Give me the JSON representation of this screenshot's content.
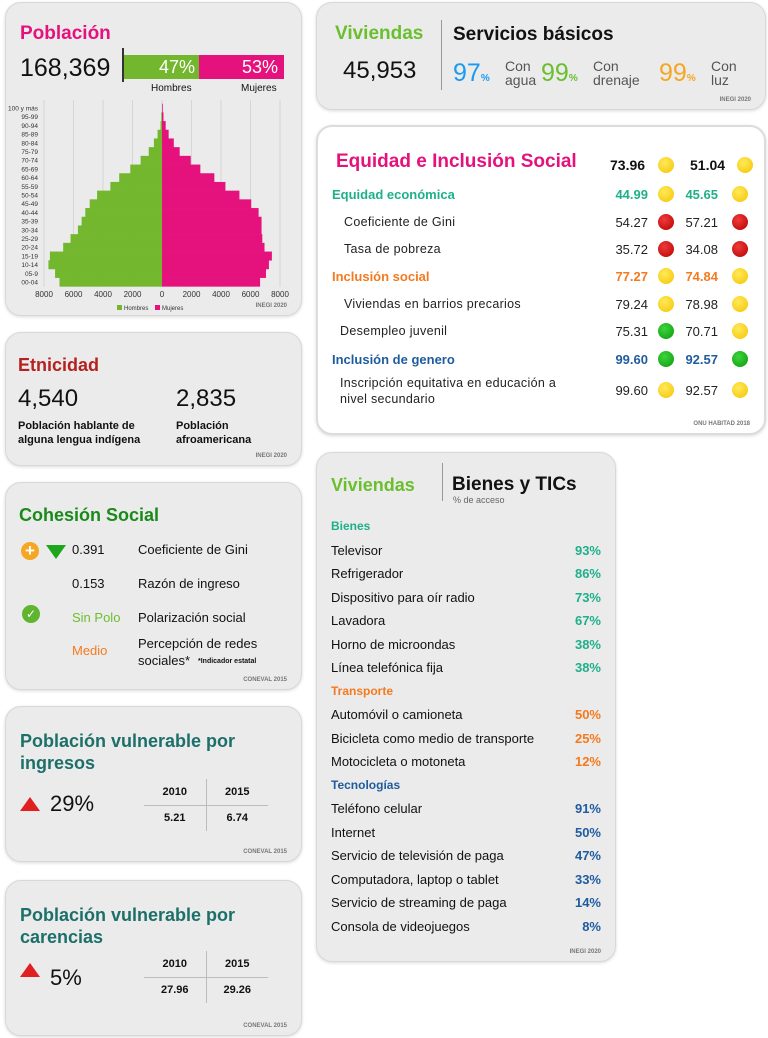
{
  "poblacion": {
    "title": "Población",
    "total": "168,369",
    "hombres_pct": "47%",
    "mujeres_pct": "53%",
    "hombres_label": "Hombres",
    "mujeres_label": "Mujeres",
    "source": "INEGI 2020"
  },
  "chart_data": {
    "type": "bar",
    "orientation": "horizontal-pyramid",
    "xlabel": "",
    "ylabel": "",
    "xlim": [
      -8000,
      8000
    ],
    "x_ticks": [
      "8000",
      "6000",
      "4000",
      "2000",
      "0",
      "2000",
      "4000",
      "6000",
      "8000"
    ],
    "categories": [
      "100 y más",
      "95-99",
      "90-94",
      "85-89",
      "80-84",
      "75-79",
      "70-74",
      "65-69",
      "60-64",
      "55-59",
      "50-54",
      "45-49",
      "40-44",
      "35-39",
      "30-34",
      "25-29",
      "20-24",
      "15-19",
      "10-14",
      "05-9",
      "00-04"
    ],
    "series": [
      {
        "name": "Hombres",
        "color": "#72b72e",
        "values": [
          0,
          50,
          100,
          300,
          550,
          900,
          1450,
          2150,
          2900,
          3500,
          4400,
          4900,
          5200,
          5450,
          5700,
          6200,
          6700,
          7600,
          7700,
          7250,
          6950
        ]
      },
      {
        "name": "Mujeres",
        "color": "#e5127d",
        "values": [
          50,
          100,
          250,
          450,
          800,
          1200,
          1950,
          2600,
          3550,
          4300,
          5250,
          6050,
          6550,
          6750,
          6750,
          6800,
          6950,
          7450,
          7250,
          7050,
          6650
        ]
      }
    ],
    "legend": "bottom-center"
  },
  "viviendas": {
    "title": "Viviendas",
    "total": "45,953",
    "servicios_title": "Servicios básicos",
    "items": [
      {
        "value": "97",
        "pct": "%",
        "label1": "Con",
        "label2": "agua",
        "color": "#1a9bf0"
      },
      {
        "value": "99",
        "pct": "%",
        "label1": "Con",
        "label2": "drenaje",
        "color": "#6abf2e"
      },
      {
        "value": "99",
        "pct": "%",
        "label1": "Con",
        "label2": "luz",
        "color": "#f5a623"
      }
    ],
    "source": "INEGI 2020"
  },
  "equidad": {
    "title": "Equidad e Inclusión Social",
    "v1": "73.96",
    "v2": "51.04",
    "source": "ONU HABITAD 2018",
    "rows": [
      {
        "label": "Equidad económica",
        "a": "44.99",
        "b": "45.65",
        "ca": "y",
        "cb": "y",
        "type": "head",
        "color": "#1fb08a"
      },
      {
        "label": "Coeficiente de Gini",
        "a": "54.27",
        "b": "57.21",
        "ca": "r",
        "cb": "r",
        "type": "sub"
      },
      {
        "label": "Tasa de pobreza",
        "a": "35.72",
        "b": "34.08",
        "ca": "r",
        "cb": "r",
        "type": "sub"
      },
      {
        "label": "Inclusión social",
        "a": "77.27",
        "b": "74.84",
        "ca": "y",
        "cb": "y",
        "type": "head",
        "color": "#f47a1f"
      },
      {
        "label": "Viviendas en barrios precarios",
        "a": "79.24",
        "b": "78.98",
        "ca": "y",
        "cb": "y",
        "type": "sub"
      },
      {
        "label": "Desempleo juvenil",
        "a": "75.31",
        "b": "70.71",
        "ca": "g",
        "cb": "y",
        "type": "sub"
      },
      {
        "label": "Inclusión de genero",
        "a": "99.60",
        "b": "92.57",
        "ca": "g",
        "cb": "g",
        "type": "head",
        "color": "#1f5c9e"
      },
      {
        "label": "Inscripción equitativa en educación a nivel secundario",
        "a": "99.60",
        "b": "92.57",
        "ca": "y",
        "cb": "y",
        "type": "sub"
      }
    ]
  },
  "etnicidad": {
    "title": "Etnicidad",
    "v1": "4,540",
    "l1a": "Población hablante de",
    "l1b": "alguna lengua indígena",
    "v2": "2,835",
    "l2a": "Población",
    "l2b": "afroamericana",
    "source": "INEGI 2020"
  },
  "cohesion": {
    "title": "Cohesión Social",
    "gini_value": "0.391",
    "gini_label": "Coeficiente de Gini",
    "razon_value": "0.153",
    "razon_label": "Razón de ingreso",
    "polo_value": "Sin Polo",
    "polo_label": "Polarización social",
    "redes_value": "Medio",
    "redes_label1": "Percepción de redes",
    "redes_label2": "sociales*",
    "nota": "*Indicador estatal",
    "source": "CONEVAL 2015"
  },
  "vuln_ingresos": {
    "title1": "Población vulnerable por",
    "title2": "ingresos",
    "pct": "29%",
    "y1": "2010",
    "y2": "2015",
    "v1": "5.21",
    "v2": "6.74",
    "source": "CONEVAL 2015"
  },
  "vuln_carencias": {
    "title1": "Población vulnerable por",
    "title2": "carencias",
    "pct": "5%",
    "y1": "2010",
    "y2": "2015",
    "v1": "27.96",
    "v2": "29.26",
    "source": "CONEVAL 2015"
  },
  "bienes": {
    "left_title": "Viviendas",
    "title": "Bienes y TICs",
    "subtitle": "% de acceso",
    "source": "INEGI 2020",
    "sections": [
      {
        "name": "Bienes",
        "color": "#1fb08a",
        "items": [
          [
            "Televisor",
            "93%"
          ],
          [
            "Refrigerador",
            "86%"
          ],
          [
            "Dispositivo para oír radio",
            "73%"
          ],
          [
            "Lavadora",
            "67%"
          ],
          [
            "Horno de microondas",
            "38%"
          ],
          [
            "Línea telefónica fija",
            "38%"
          ]
        ]
      },
      {
        "name": "Transporte",
        "color": "#f47a1f",
        "items": [
          [
            "Automóvil o camioneta",
            "50%"
          ],
          [
            "Bicicleta como medio de transporte",
            "25%"
          ],
          [
            "Motocicleta o motoneta",
            "12%"
          ]
        ]
      },
      {
        "name": "Tecnologías",
        "color": "#1f5c9e",
        "items": [
          [
            "Teléfono celular",
            "91%"
          ],
          [
            "Internet",
            "50%"
          ],
          [
            "Servicio de televisión de paga",
            "47%"
          ],
          [
            "Computadora, laptop o tablet",
            "33%"
          ],
          [
            "Servicio de streaming de paga",
            "14%"
          ],
          [
            "Consola de videojuegos",
            "8%"
          ]
        ]
      }
    ]
  }
}
